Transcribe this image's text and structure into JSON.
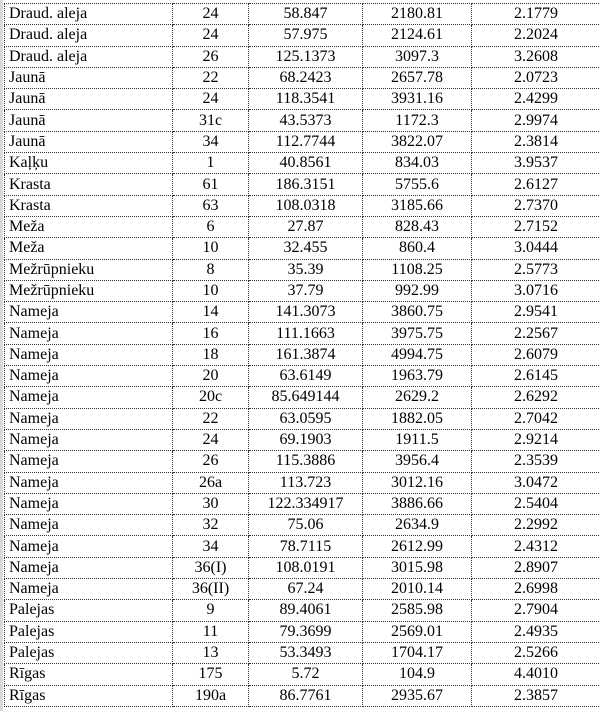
{
  "rows": [
    [
      "Draud. aleja",
      "24",
      "58.847",
      "2180.81",
      "2.1779"
    ],
    [
      "Draud. aleja",
      "24",
      "57.975",
      "2124.61",
      "2.2024"
    ],
    [
      "Draud. aleja",
      "26",
      "125.1373",
      "3097.3",
      "3.2608"
    ],
    [
      "Jaunā",
      "22",
      "68.2423",
      "2657.78",
      "2.0723"
    ],
    [
      "Jaunā",
      "24",
      "118.3541",
      "3931.16",
      "2.4299"
    ],
    [
      "Jaunā",
      "31c",
      "43.5373",
      "1172.3",
      "2.9974"
    ],
    [
      "Jaunā",
      "34",
      "112.7744",
      "3822.07",
      "2.3814"
    ],
    [
      "Kaļķu",
      "1",
      "40.8561",
      "834.03",
      "3.9537"
    ],
    [
      "Krasta",
      "61",
      "186.3151",
      "5755.6",
      "2.6127"
    ],
    [
      "Krasta",
      "63",
      "108.0318",
      "3185.66",
      "2.7370"
    ],
    [
      "Meža",
      "6",
      "27.87",
      "828.43",
      "2.7152"
    ],
    [
      "Meža",
      "10",
      "32.455",
      "860.4",
      "3.0444"
    ],
    [
      "Mežrūpnieku",
      "8",
      "35.39",
      "1108.25",
      "2.5773"
    ],
    [
      "Mežrūpnieku",
      "10",
      "37.79",
      "992.99",
      "3.0716"
    ],
    [
      "Nameja",
      "14",
      "141.3073",
      "3860.75",
      "2.9541"
    ],
    [
      "Nameja",
      "16",
      "111.1663",
      "3975.75",
      "2.2567"
    ],
    [
      "Nameja",
      "18",
      "161.3874",
      "4994.75",
      "2.6079"
    ],
    [
      "Nameja",
      "20",
      "63.6149",
      "1963.79",
      "2.6145"
    ],
    [
      "Nameja",
      "20c",
      "85.649144",
      "2629.2",
      "2.6292"
    ],
    [
      "Nameja",
      "22",
      "63.0595",
      "1882.05",
      "2.7042"
    ],
    [
      "Nameja",
      "24",
      "69.1903",
      "1911.5",
      "2.9214"
    ],
    [
      "Nameja",
      "26",
      "115.3886",
      "3956.4",
      "2.3539"
    ],
    [
      "Nameja",
      "26a",
      "113.723",
      "3012.16",
      "3.0472"
    ],
    [
      "Nameja",
      "30",
      "122.334917",
      "3886.66",
      "2.5404"
    ],
    [
      "Nameja",
      "32",
      "75.06",
      "2634.9",
      "2.2992"
    ],
    [
      "Nameja",
      "34",
      "78.7115",
      "2612.99",
      "2.4312"
    ],
    [
      "Nameja",
      "36(I)",
      "108.0191",
      "3015.98",
      "2.8907"
    ],
    [
      "Nameja",
      "36(II)",
      "67.24",
      "2010.14",
      "2.6998"
    ],
    [
      "Palejas",
      "9",
      "89.4061",
      "2585.98",
      "2.7904"
    ],
    [
      "Palejas",
      "11",
      "79.3699",
      "2569.01",
      "2.4935"
    ],
    [
      "Palejas",
      "13",
      "53.3493",
      "1704.17",
      "2.5266"
    ],
    [
      "Rīgas",
      "175",
      "5.72",
      "104.9",
      "4.4010"
    ],
    [
      "Rīgas",
      "190a",
      "86.7761",
      "2935.67",
      "2.3857"
    ]
  ]
}
